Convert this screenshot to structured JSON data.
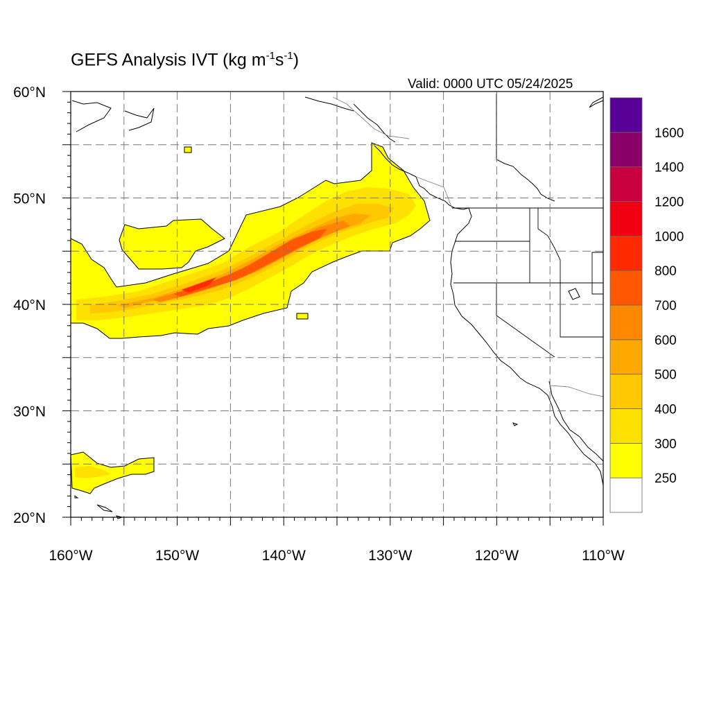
{
  "title": {
    "prefix": "GEFS Analysis IVT (kg m",
    "exp1": "-1",
    "mid": "s",
    "exp2": "-1",
    "suffix": ")"
  },
  "valid_label": "Valid: 0000 UTC 05/24/2025",
  "map": {
    "lon_range": [
      -160,
      -110
    ],
    "lat_range": [
      20,
      60
    ],
    "lon_ticks": [
      {
        "value": -160,
        "label": "160°W"
      },
      {
        "value": -150,
        "label": "150°W"
      },
      {
        "value": -140,
        "label": "140°W"
      },
      {
        "value": -130,
        "label": "130°W"
      },
      {
        "value": -120,
        "label": "120°W"
      },
      {
        "value": -110,
        "label": "110°W"
      }
    ],
    "lat_ticks": [
      {
        "value": 60,
        "label": "60°N"
      },
      {
        "value": 50,
        "label": "50°N"
      },
      {
        "value": 40,
        "label": "40°N"
      },
      {
        "value": 30,
        "label": "30°N"
      },
      {
        "value": 20,
        "label": "20°N"
      }
    ],
    "grid": "dashed, every 5°",
    "features": [
      "North America west coast",
      "US state borders",
      "Mexico/Baja California",
      "Alaska panhandle"
    ]
  },
  "colorbar": {
    "labels": [
      "250",
      "300",
      "400",
      "500",
      "600",
      "700",
      "800",
      "1000",
      "1200",
      "1400",
      "1600"
    ],
    "colors": [
      "#ffffff",
      "#ffff00",
      "#ffe100",
      "#ffc800",
      "#ffa800",
      "#ff8800",
      "#ff5800",
      "#ff2a00",
      "#f00010",
      "#c80040",
      "#8a0068",
      "#580098"
    ]
  }
}
